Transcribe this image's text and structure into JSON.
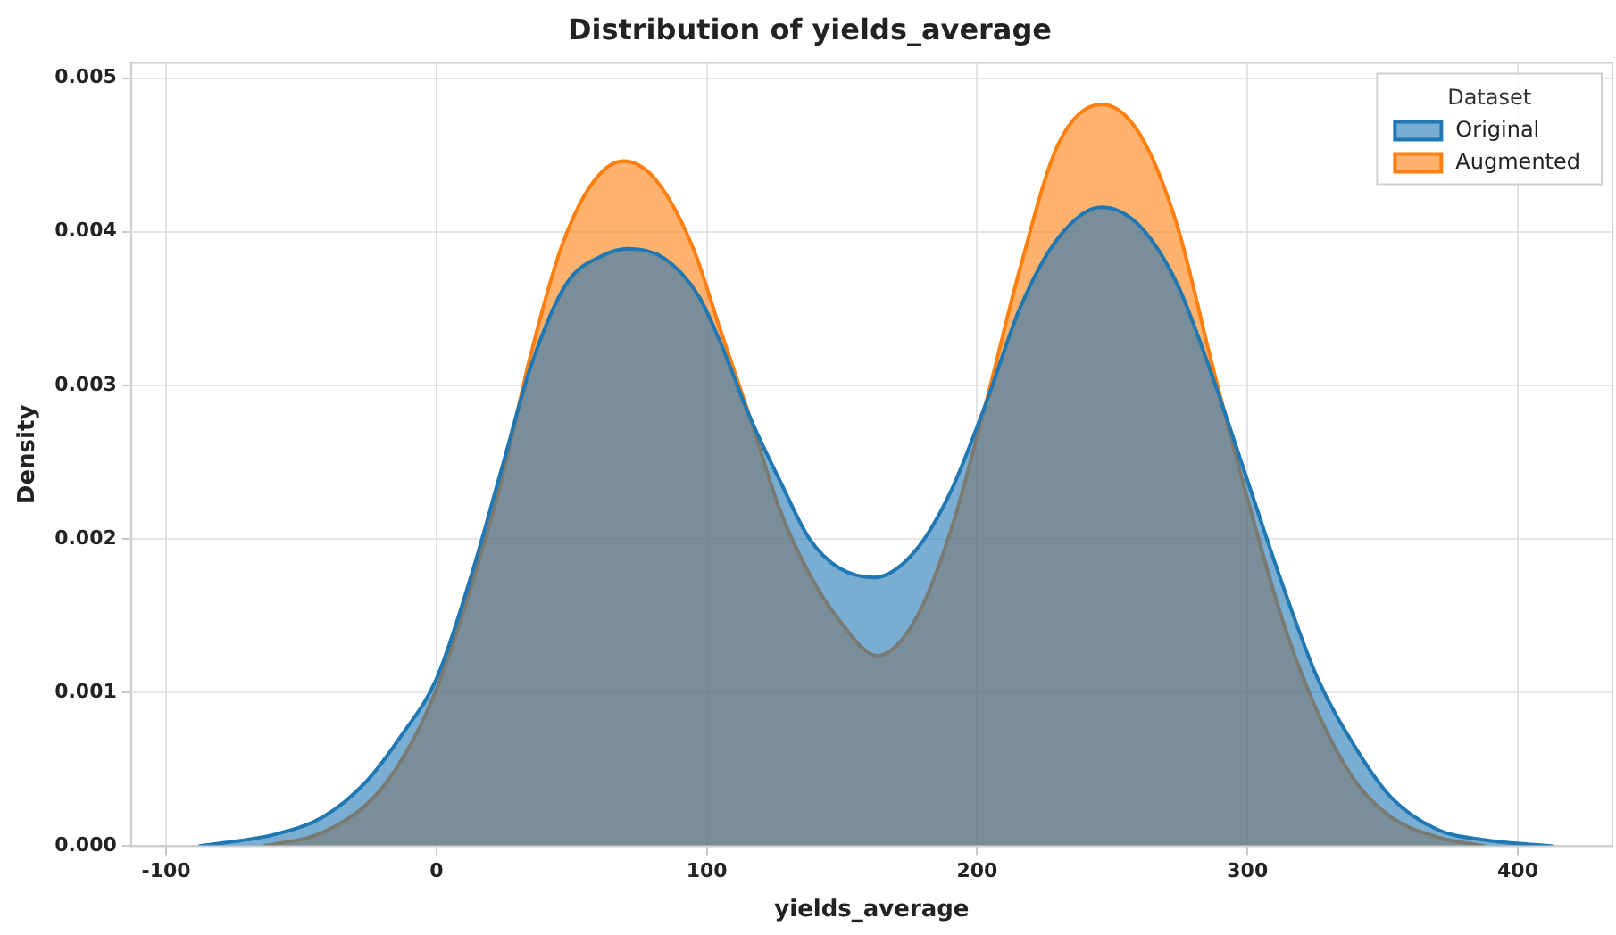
{
  "chart_data": {
    "type": "area",
    "title": "Distribution of yields_average",
    "xlabel": "yields_average",
    "ylabel": "Density",
    "legend_title": "Dataset",
    "legend": "top right",
    "grid": true,
    "xlim": [
      -113,
      435
    ],
    "xticks": [
      -100,
      0,
      100,
      200,
      300,
      400
    ],
    "ylim": [
      0,
      0.0051
    ],
    "yticks": [
      {
        "value": 0,
        "label": "0.000"
      },
      {
        "value": 0.001,
        "label": "0.001"
      },
      {
        "value": 0.002,
        "label": "0.002"
      },
      {
        "value": 0.003,
        "label": "0.003"
      },
      {
        "value": 0.004,
        "label": "0.004"
      },
      {
        "value": 0.005,
        "label": "0.005"
      }
    ],
    "series": [
      {
        "name": "Original",
        "color": "#1f77b4",
        "x": [
          -88,
          -59,
          -42,
          -26,
          -13,
          0,
          13,
          24,
          35,
          48,
          62,
          71,
          84,
          97,
          105,
          116,
          127,
          138,
          149,
          162,
          177,
          190,
          203,
          216,
          230,
          246,
          260,
          274,
          287,
          300,
          313,
          326,
          340,
          353,
          370,
          388,
          413
        ],
        "values": [
          0,
          8e-05,
          0.00019,
          0.00042,
          0.00072,
          0.00109,
          0.00177,
          0.00245,
          0.00313,
          0.00366,
          0.00385,
          0.00389,
          0.00383,
          0.00358,
          0.00328,
          0.00279,
          0.00238,
          0.002,
          0.00181,
          0.00175,
          0.00192,
          0.0023,
          0.00287,
          0.00351,
          0.00396,
          0.00416,
          0.00404,
          0.00366,
          0.00306,
          0.00238,
          0.0017,
          0.00109,
          0.00064,
          0.00032,
          0.00011,
          4e-05,
          0
        ]
      },
      {
        "name": "Augmented",
        "color": "#ff7f0e",
        "x": [
          -64,
          -42,
          -22,
          -9,
          0,
          13,
          24,
          35,
          46,
          57,
          69,
          81,
          95,
          105,
          116,
          127,
          138,
          149,
          163,
          177,
          190,
          203,
          216,
          230,
          246,
          260,
          274,
          287,
          300,
          313,
          326,
          340,
          353,
          370,
          388
        ],
        "values": [
          0,
          9e-05,
          0.00034,
          0.00068,
          0.00102,
          0.0017,
          0.00238,
          0.00321,
          0.00389,
          0.0043,
          0.00446,
          0.00434,
          0.00389,
          0.00336,
          0.00279,
          0.00219,
          0.00177,
          0.00147,
          0.00124,
          0.00147,
          0.00204,
          0.00287,
          0.00377,
          0.00457,
          0.00483,
          0.00464,
          0.00404,
          0.00313,
          0.00226,
          0.00147,
          0.00087,
          0.00042,
          0.00019,
          6e-05,
          0
        ]
      }
    ]
  }
}
